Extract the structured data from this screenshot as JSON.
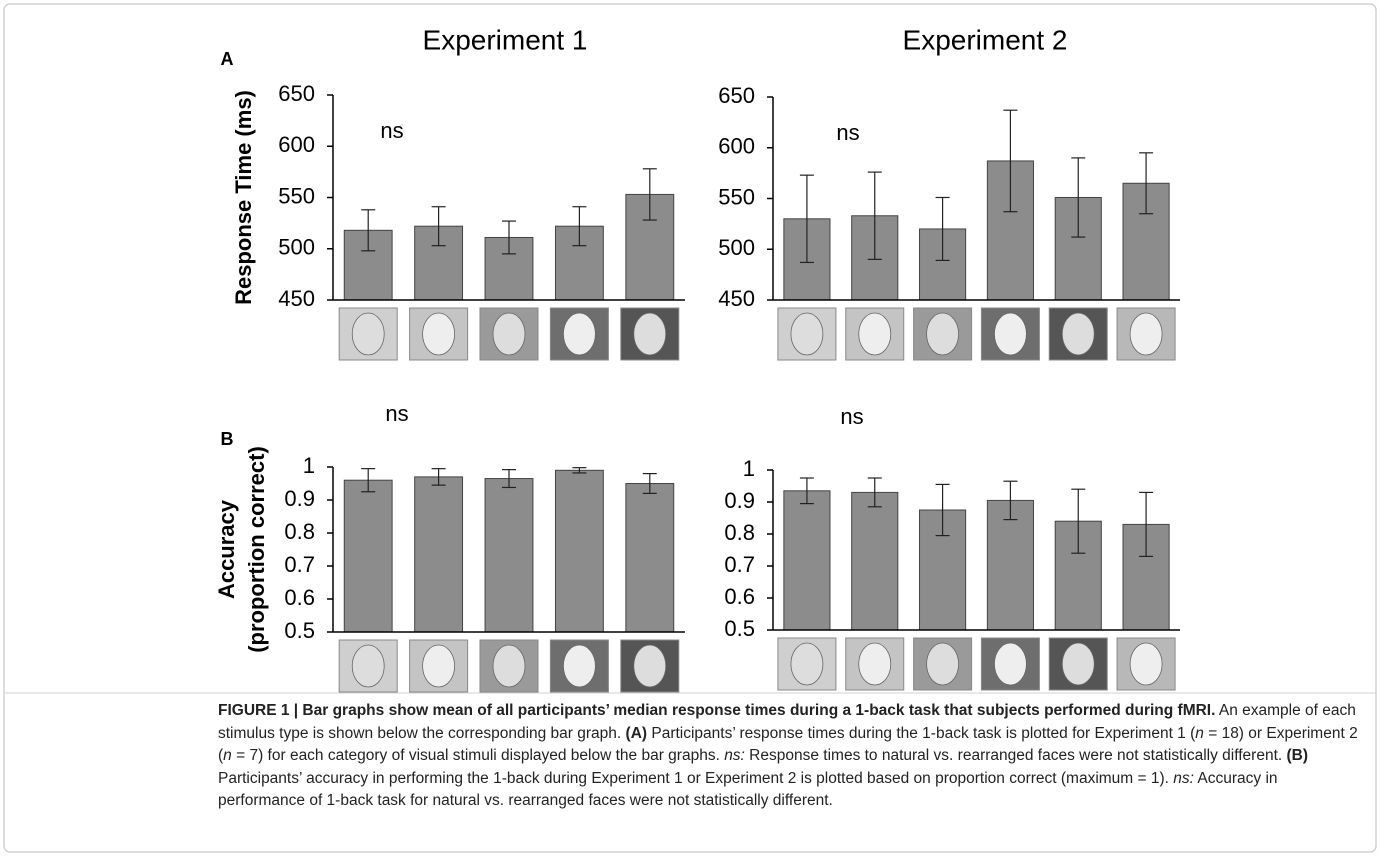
{
  "chart_data": [
    {
      "type": "bar",
      "title": "Experiment 1",
      "panel_label": "A",
      "annotation": "ns",
      "ylabel": "Response Time (ms)",
      "categories": [
        null,
        null,
        null,
        null,
        null
      ],
      "values": [
        518,
        522,
        511,
        522,
        553
      ],
      "errors": [
        20,
        19,
        16,
        19,
        25
      ],
      "color": "#8c8c8c",
      "ylim": [
        450,
        650
      ],
      "yticks": [
        450,
        500,
        550,
        600,
        650
      ]
    },
    {
      "type": "bar",
      "title": "Experiment 2",
      "annotation": "ns",
      "categories": [
        null,
        null,
        null,
        null,
        null,
        null
      ],
      "values": [
        530,
        533,
        520,
        587,
        551,
        565
      ],
      "errors": [
        43,
        43,
        31,
        50,
        39,
        30
      ],
      "color": "#8c8c8c",
      "ylim": [
        450,
        650
      ],
      "yticks": [
        450,
        500,
        550,
        600,
        650
      ]
    },
    {
      "type": "bar",
      "panel_label": "B",
      "annotation": "ns",
      "ylabel": [
        "Accuracy",
        "(proportion correct)"
      ],
      "categories": [
        null,
        null,
        null,
        null,
        null
      ],
      "values": [
        0.96,
        0.97,
        0.965,
        0.99,
        0.95
      ],
      "errors": [
        0.035,
        0.025,
        0.027,
        0.008,
        0.03
      ],
      "color": "#8c8c8c",
      "ylim": [
        0.5,
        1
      ],
      "yticks": [
        0.5,
        0.6,
        0.7,
        0.8,
        0.9,
        1
      ]
    },
    {
      "type": "bar",
      "annotation": "ns",
      "categories": [
        null,
        null,
        null,
        null,
        null,
        null
      ],
      "values": [
        0.935,
        0.93,
        0.875,
        0.905,
        0.84,
        0.83
      ],
      "errors": [
        0.04,
        0.045,
        0.08,
        0.06,
        0.1,
        0.1
      ],
      "color": "#8c8c8c",
      "ylim": [
        0.5,
        1
      ],
      "yticks": [
        0.5,
        0.6,
        0.7,
        0.8,
        0.9,
        1
      ]
    }
  ],
  "caption": {
    "parts": [
      "FIGURE 1 | Bar graphs show mean of all participants’ median response times during a 1-back task that subjects performed during fMRI.",
      " An example of each stimulus type is shown below the corresponding bar graph. ",
      "(A)",
      " Participants’ response times during the 1-back task is plotted for Experiment 1 (",
      "n",
      " = 18) or Experiment 2 (",
      "n",
      " = 7) for each category of visual stimuli displayed below the bar graphs. ",
      "ns:",
      " Response times to natural vs. rearranged faces were not statistically different. ",
      "(B)",
      " Participants’ accuracy in performing the 1-back during Experiment 1 or Experiment 2 is plotted based on proportion correct (maximum = 1). ",
      "ns:",
      " Accuracy in performance of 1-back task for natural vs. rearranged faces were not statistically different."
    ]
  }
}
